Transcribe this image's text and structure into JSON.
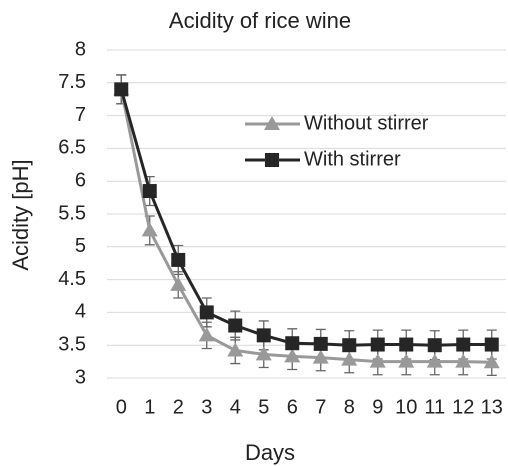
{
  "chart_data": {
    "type": "line",
    "title": "Acidity of rice wine",
    "x_label": "Days",
    "y_label": "Acidity [pH]",
    "x": [
      0,
      1,
      2,
      3,
      4,
      5,
      6,
      7,
      8,
      9,
      10,
      11,
      12,
      13
    ],
    "xlim": [
      -0.5,
      13.5
    ],
    "xticks": [
      0,
      1,
      2,
      3,
      4,
      5,
      6,
      7,
      8,
      9,
      10,
      11,
      12,
      13
    ],
    "ylim": [
      3,
      8
    ],
    "yticks": [
      3,
      3.5,
      4,
      4.5,
      5,
      5.5,
      6,
      6.5,
      7,
      7.5,
      8
    ],
    "grid": true,
    "legend": "upper right",
    "series": [
      {
        "name": "Without stirrer",
        "color": "#999999",
        "marker": "triangle",
        "values": [
          7.4,
          5.25,
          4.42,
          3.65,
          3.42,
          3.36,
          3.33,
          3.31,
          3.28,
          3.25,
          3.25,
          3.25,
          3.25,
          3.24
        ],
        "errors": [
          0.22,
          0.22,
          0.2,
          0.2,
          0.2,
          0.2,
          0.2,
          0.2,
          0.2,
          0.2,
          0.2,
          0.2,
          0.2,
          0.2
        ]
      },
      {
        "name": "With stirrer",
        "color": "#262626",
        "marker": "square",
        "values": [
          7.4,
          5.85,
          4.8,
          4.0,
          3.8,
          3.65,
          3.53,
          3.52,
          3.5,
          3.51,
          3.51,
          3.5,
          3.51,
          3.51
        ],
        "errors": [
          0.22,
          0.22,
          0.22,
          0.22,
          0.22,
          0.22,
          0.22,
          0.22,
          0.22,
          0.22,
          0.22,
          0.22,
          0.22,
          0.22
        ]
      }
    ]
  }
}
